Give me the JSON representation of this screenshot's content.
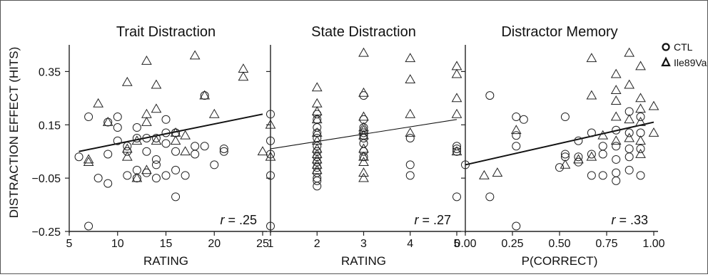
{
  "ylabel": "DISTRACTION EFFECT (HITS)",
  "legend": [
    {
      "label": "CTL",
      "marker": "circle"
    },
    {
      "label": "Ile89Val",
      "marker": "triangle"
    }
  ],
  "chart_data": [
    {
      "type": "scatter",
      "title": "Trait Distraction",
      "xlabel": "RATING",
      "ylabel": "DISTRACTION EFFECT (HITS)",
      "xlim": [
        5,
        25
      ],
      "ylim": [
        -0.25,
        0.45
      ],
      "xticks": [
        "5",
        "10",
        "15",
        "20",
        "25"
      ],
      "yticks": [
        "-0.25",
        "-0.05",
        "0.15",
        "0.35"
      ],
      "annotation": {
        "r_label": "r",
        "value": "= .25"
      },
      "trend": [
        [
          6,
          0.05
        ],
        [
          25,
          0.19
        ]
      ],
      "series": [
        {
          "name": "CTL",
          "marker": "circle",
          "points": [
            [
              6,
              0.03
            ],
            [
              7,
              0.18
            ],
            [
              7,
              -0.23
            ],
            [
              8,
              -0.05
            ],
            [
              9,
              -0.07
            ],
            [
              9,
              0.04
            ],
            [
              9,
              0.16
            ],
            [
              10,
              0.18
            ],
            [
              10,
              0.14
            ],
            [
              10,
              0.09
            ],
            [
              11,
              0.07
            ],
            [
              11,
              -0.04
            ],
            [
              11,
              0.05
            ],
            [
              12,
              0.14
            ],
            [
              12,
              0.1
            ],
            [
              12,
              -0.02
            ],
            [
              12,
              -0.05
            ],
            [
              13,
              0.05
            ],
            [
              13,
              0.1
            ],
            [
              13,
              -0.03
            ],
            [
              14,
              0.1
            ],
            [
              14,
              0.02
            ],
            [
              14,
              -0.05
            ],
            [
              14,
              0.0
            ],
            [
              15,
              0.08
            ],
            [
              15,
              0.12
            ],
            [
              15,
              0.17
            ],
            [
              15,
              -0.04
            ],
            [
              16,
              0.12
            ],
            [
              16,
              0.05
            ],
            [
              16,
              -0.12
            ],
            [
              16,
              -0.02
            ],
            [
              16,
              0.12
            ],
            [
              17,
              -0.04
            ],
            [
              18,
              0.07
            ],
            [
              18,
              0.04
            ],
            [
              19,
              0.26
            ],
            [
              19,
              0.07
            ],
            [
              20,
              0.0
            ],
            [
              21,
              0.06
            ],
            [
              21,
              0.05
            ]
          ]
        },
        {
          "name": "Ile89Val",
          "marker": "triangle",
          "points": [
            [
              7,
              0.02
            ],
            [
              7,
              0.01
            ],
            [
              8,
              0.23
            ],
            [
              9,
              0.16
            ],
            [
              11,
              0.31
            ],
            [
              11,
              0.06
            ],
            [
              11,
              0.03
            ],
            [
              12,
              0.09
            ],
            [
              12,
              -0.05
            ],
            [
              13,
              0.39
            ],
            [
              13,
              0.16
            ],
            [
              13,
              0.19
            ],
            [
              13,
              -0.02
            ],
            [
              14,
              0.3
            ],
            [
              14,
              0.21
            ],
            [
              14,
              0.09
            ],
            [
              16,
              0.12
            ],
            [
              16,
              0.09
            ],
            [
              17,
              0.05
            ],
            [
              17,
              0.11
            ],
            [
              18,
              0.41
            ],
            [
              19,
              0.26
            ],
            [
              20,
              0.19
            ],
            [
              23,
              0.36
            ],
            [
              23,
              0.33
            ],
            [
              25,
              0.05
            ]
          ]
        }
      ]
    },
    {
      "type": "scatter",
      "title": "State Distraction",
      "xlabel": "RATING",
      "xlim": [
        1,
        5
      ],
      "ylim": [
        -0.25,
        0.45
      ],
      "xticks": [
        "1",
        "2",
        "3",
        "4",
        "5"
      ],
      "yticks": [
        "-0.25",
        "-0.05",
        "0.15",
        "0.35"
      ],
      "annotation": {
        "r_label": "r",
        "value": "= .27"
      },
      "trend": [
        [
          1,
          0.06
        ],
        [
          5,
          0.17
        ]
      ],
      "series": [
        {
          "name": "CTL",
          "marker": "circle",
          "points": [
            [
              1,
              0.19
            ],
            [
              1,
              0.09
            ],
            [
              1,
              0.04
            ],
            [
              1,
              -0.04
            ],
            [
              1,
              -0.23
            ],
            [
              2,
              0.19
            ],
            [
              2,
              0.17
            ],
            [
              2,
              0.14
            ],
            [
              2,
              0.12
            ],
            [
              2,
              0.1
            ],
            [
              2,
              0.07
            ],
            [
              2,
              0.05
            ],
            [
              2,
              0.03
            ],
            [
              2,
              0.01
            ],
            [
              2,
              -0.01
            ],
            [
              2,
              -0.03
            ],
            [
              2,
              -0.05
            ],
            [
              2,
              -0.06
            ],
            [
              2,
              -0.08
            ],
            [
              3,
              0.26
            ],
            [
              3,
              0.17
            ],
            [
              3,
              0.14
            ],
            [
              3,
              0.12
            ],
            [
              3,
              0.11
            ],
            [
              3,
              0.1
            ],
            [
              3,
              0.08
            ],
            [
              3,
              0.05
            ],
            [
              3,
              0.03
            ],
            [
              4,
              0.1
            ],
            [
              4,
              0.0
            ],
            [
              4,
              -0.04
            ],
            [
              5,
              0.07
            ],
            [
              5,
              0.06
            ],
            [
              5,
              0.05
            ],
            [
              5,
              -0.12
            ]
          ]
        },
        {
          "name": "Ile89Val",
          "marker": "triangle",
          "points": [
            [
              1,
              0.15
            ],
            [
              1,
              0.03
            ],
            [
              2,
              0.29
            ],
            [
              2,
              0.23
            ],
            [
              2,
              0.2
            ],
            [
              2,
              0.17
            ],
            [
              2,
              0.12
            ],
            [
              2,
              0.09
            ],
            [
              2,
              0.06
            ],
            [
              2,
              0.04
            ],
            [
              2,
              0.02
            ],
            [
              2,
              0.0
            ],
            [
              2,
              -0.02
            ],
            [
              3,
              0.42
            ],
            [
              3,
              0.27
            ],
            [
              3,
              0.18
            ],
            [
              3,
              0.14
            ],
            [
              3,
              0.13
            ],
            [
              3,
              0.11
            ],
            [
              3,
              0.06
            ],
            [
              3,
              0.03
            ],
            [
              3,
              0.01
            ],
            [
              3,
              -0.03
            ],
            [
              3,
              -0.05
            ],
            [
              4,
              0.4
            ],
            [
              4,
              0.32
            ],
            [
              4,
              0.19
            ],
            [
              4,
              0.12
            ],
            [
              5,
              0.37
            ],
            [
              5,
              0.34
            ],
            [
              5,
              0.25
            ],
            [
              5,
              0.19
            ],
            [
              5,
              0.05
            ]
          ]
        }
      ]
    },
    {
      "type": "scatter",
      "title": "Distractor Memory",
      "xlabel": "P(CORRECT)",
      "xlim": [
        0,
        1
      ],
      "ylim": [
        -0.25,
        0.45
      ],
      "xticks": [
        "0.00",
        "0.25",
        "0.50",
        "0.75",
        "1.00"
      ],
      "yticks": [
        "-0.25",
        "-0.05",
        "0.15",
        "0.35"
      ],
      "annotation": {
        "r_label": "r",
        "value": "= .33"
      },
      "trend": [
        [
          0,
          0.0
        ],
        [
          1,
          0.16
        ]
      ],
      "series": [
        {
          "name": "CTL",
          "marker": "circle",
          "points": [
            [
              0.0,
              0.0
            ],
            [
              0.13,
              0.26
            ],
            [
              0.13,
              -0.12
            ],
            [
              0.27,
              0.18
            ],
            [
              0.27,
              0.11
            ],
            [
              0.27,
              0.07
            ],
            [
              0.27,
              -0.23
            ],
            [
              0.31,
              0.17
            ],
            [
              0.5,
              -0.01
            ],
            [
              0.53,
              0.18
            ],
            [
              0.53,
              0.04
            ],
            [
              0.53,
              0.03
            ],
            [
              0.6,
              0.09
            ],
            [
              0.6,
              0.03
            ],
            [
              0.6,
              0.01
            ],
            [
              0.67,
              0.12
            ],
            [
              0.67,
              0.04
            ],
            [
              0.67,
              -0.04
            ],
            [
              0.73,
              0.07
            ],
            [
              0.73,
              0.04
            ],
            [
              0.73,
              -0.04
            ],
            [
              0.8,
              0.13
            ],
            [
              0.8,
              0.07
            ],
            [
              0.8,
              0.02
            ],
            [
              0.8,
              -0.03
            ],
            [
              0.8,
              -0.06
            ],
            [
              0.87,
              0.2
            ],
            [
              0.87,
              0.12
            ],
            [
              0.87,
              0.06
            ],
            [
              0.87,
              0.03
            ],
            [
              0.87,
              -0.02
            ],
            [
              0.93,
              0.18
            ],
            [
              0.93,
              0.12
            ],
            [
              0.93,
              0.06
            ],
            [
              0.93,
              -0.04
            ]
          ]
        },
        {
          "name": "Ile89Val",
          "marker": "triangle",
          "points": [
            [
              0.1,
              -0.04
            ],
            [
              0.17,
              -0.03
            ],
            [
              0.27,
              0.13
            ],
            [
              0.53,
              0.0
            ],
            [
              0.6,
              0.02
            ],
            [
              0.67,
              0.4
            ],
            [
              0.67,
              0.26
            ],
            [
              0.67,
              0.03
            ],
            [
              0.73,
              0.11
            ],
            [
              0.8,
              0.34
            ],
            [
              0.8,
              0.28
            ],
            [
              0.8,
              0.24
            ],
            [
              0.8,
              0.18
            ],
            [
              0.8,
              0.09
            ],
            [
              0.87,
              0.42
            ],
            [
              0.87,
              0.3
            ],
            [
              0.87,
              0.17
            ],
            [
              0.87,
              0.1
            ],
            [
              0.93,
              0.37
            ],
            [
              0.93,
              0.25
            ],
            [
              0.93,
              0.21
            ],
            [
              0.93,
              0.16
            ],
            [
              0.93,
              0.09
            ],
            [
              0.93,
              0.04
            ],
            [
              1.0,
              0.22
            ],
            [
              1.0,
              0.12
            ]
          ]
        }
      ]
    }
  ]
}
